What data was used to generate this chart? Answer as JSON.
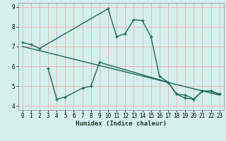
{
  "xlabel": "Humidex (Indice chaleur)",
  "bg_color": "#d4f0ec",
  "grid_color": "#e8b8b8",
  "line_color": "#1a6b5a",
  "line1_x": [
    0,
    1,
    2,
    10,
    11,
    12,
    13,
    14,
    15,
    16,
    17,
    18,
    19,
    20,
    21,
    22,
    23
  ],
  "line1_y": [
    7.2,
    7.1,
    6.9,
    8.9,
    7.5,
    7.65,
    8.35,
    8.3,
    7.5,
    5.5,
    5.2,
    4.6,
    4.55,
    4.35,
    4.75,
    4.75,
    4.6
  ],
  "line2_x": [
    3,
    4,
    5,
    7,
    8,
    9,
    17,
    18,
    19,
    20,
    21,
    22,
    23
  ],
  "line2_y": [
    5.9,
    4.35,
    4.45,
    4.9,
    5.0,
    6.2,
    5.2,
    4.6,
    4.4,
    4.35,
    4.75,
    4.75,
    4.6
  ],
  "line3_x": [
    0,
    23
  ],
  "line3_y": [
    7.0,
    4.55
  ],
  "xlim": [
    -0.5,
    23.5
  ],
  "ylim": [
    3.8,
    9.2
  ],
  "xticks": [
    0,
    1,
    2,
    3,
    4,
    5,
    6,
    7,
    8,
    9,
    10,
    11,
    12,
    13,
    14,
    15,
    16,
    17,
    18,
    19,
    20,
    21,
    22,
    23
  ],
  "yticks": [
    4,
    5,
    6,
    7,
    8,
    9
  ],
  "tick_fontsize": 5.5,
  "xlabel_fontsize": 6.5
}
